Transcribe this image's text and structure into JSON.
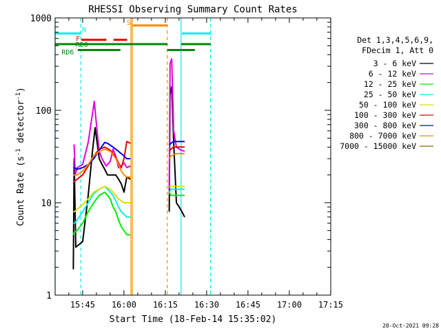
{
  "chart_data": {
    "type": "line",
    "title": "RHESSI Observing Summary Count Rates",
    "xlabel": "Start Time (18-Feb-14 15:35:02)",
    "ylabel_main": "Count Rate (s",
    "ylabel_sup1": "-1",
    "ylabel_mid": " detector",
    "ylabel_sup2": "-1",
    "ylabel_end": ")",
    "x_unit": "minutes after 15:35:02",
    "x_range": [
      0,
      100
    ],
    "y_scale": "log",
    "y_range": [
      1,
      1000
    ],
    "x_ticks": [
      {
        "value": 9.97,
        "label": "15:45"
      },
      {
        "value": 24.97,
        "label": "16:00"
      },
      {
        "value": 39.97,
        "label": "16:15"
      },
      {
        "value": 54.97,
        "label": "16:30"
      },
      {
        "value": 69.97,
        "label": "16:45"
      },
      {
        "value": 84.97,
        "label": "17:00"
      },
      {
        "value": 99.97,
        "label": "17:15"
      }
    ],
    "y_ticks": [
      {
        "value": 1,
        "label": "1"
      },
      {
        "value": 10,
        "label": "10"
      },
      {
        "value": 100,
        "label": "100"
      },
      {
        "value": 1000,
        "label": "1000"
      }
    ],
    "timestamp": "20-Oct-2021 09:28",
    "legend": {
      "header1": "Det 1,3,4,5,6,9,",
      "header2": "FDecim 1, Att 0",
      "entries": [
        {
          "label": "3 - 6 keV",
          "color": "#000000"
        },
        {
          "label": "6 - 12 keV",
          "color": "#dd00dd"
        },
        {
          "label": "12 - 25 keV",
          "color": "#00ee00"
        },
        {
          "label": "25 - 50 keV",
          "color": "#00eeee"
        },
        {
          "label": "50 - 100 keV",
          "color": "#dddd00"
        },
        {
          "label": "100 - 300 keV",
          "color": "#ee0000"
        },
        {
          "label": "300 - 800 keV",
          "color": "#0000ee"
        },
        {
          "label": "800 - 7000 keV",
          "color": "#ff8800"
        },
        {
          "label": "7000 - 15000 keV",
          "color": "#886600"
        }
      ]
    },
    "vlines": [
      {
        "x": 0.0,
        "color": "#00eeee",
        "dashed": false
      },
      {
        "x": 9.3,
        "color": "#00eeee",
        "dashed": true
      },
      {
        "x": 27.5,
        "color": "#ff8800",
        "dashed": false
      },
      {
        "x": 28.0,
        "color": "#ff8800",
        "dashed": false
      },
      {
        "x": 40.7,
        "color": "#ff8800",
        "dashed": true
      },
      {
        "x": 45.7,
        "color": "#00eeee",
        "dashed": false
      },
      {
        "x": 56.4,
        "color": "#00eeee",
        "dashed": true
      }
    ],
    "flag_bars": [
      {
        "name": "N",
        "color": "#00eeee",
        "y": 680,
        "segments": [
          [
            0,
            9.3
          ],
          [
            46,
            56.4
          ]
        ]
      },
      {
        "name": "S",
        "color": "#ff8800",
        "y": 830,
        "segments": [
          [
            28,
            40.7
          ]
        ]
      },
      {
        "name": "F",
        "color": "#ee0000",
        "y": 580,
        "segments": [
          [
            9.5,
            18.6
          ],
          [
            21.2,
            26.1
          ]
        ]
      },
      {
        "name": "RD0",
        "color": "#008800",
        "y": 520,
        "segments": [
          [
            0,
            40.7
          ],
          [
            45.7,
            56.4
          ]
        ]
      },
      {
        "name": "RD6",
        "color": "#008800",
        "y": 450,
        "segments": [
          [
            8.2,
            23.7
          ],
          [
            40.7,
            50.7
          ]
        ]
      }
    ],
    "flag_labels": [
      {
        "text": "N",
        "x": 10.5,
        "y": 760,
        "color": "#00eeee"
      },
      {
        "text": "S",
        "x": 26.7,
        "y": 900,
        "color": "#ff8800"
      },
      {
        "text": "F",
        "x": 8.3,
        "y": 600,
        "color": "#ee0000"
      },
      {
        "text": "RD0",
        "x": 9.7,
        "y": 520,
        "color": "#008800"
      },
      {
        "text": "RD6",
        "x": 4.6,
        "y": 430,
        "color": "#008800"
      }
    ],
    "series": [
      {
        "name": "3 - 6 keV",
        "color": "#000000",
        "segments": [
          {
            "x": [
              6.6,
              6.9,
              7.5,
              8.5,
              10,
              12,
              13.5,
              14.5,
              16,
              17,
              18,
              19,
              20,
              21,
              22,
              23,
              24,
              25,
              26,
              27.3
            ],
            "y": [
              1.9,
              30,
              3.3,
              3.5,
              3.8,
              12,
              35,
              65,
              30,
              26,
              23,
              20,
              20,
              20,
              20,
              18,
              16,
              13,
              19,
              18
            ]
          },
          {
            "x": [
              41.4,
              41.7,
              42.3,
              43,
              44,
              45,
              46,
              47
            ],
            "y": [
              8,
              150,
              180,
              46,
              10,
              9,
              8,
              7
            ]
          }
        ]
      },
      {
        "name": "6 - 12 keV",
        "color": "#dd00dd",
        "segments": [
          {
            "x": [
              6.6,
              6.9,
              7.3,
              8,
              10,
              12,
              13.5,
              14.2,
              15,
              16,
              17,
              18.5,
              20,
              21,
              22,
              23,
              24,
              25,
              26,
              27.3
            ],
            "y": [
              42,
              42,
              20,
              24,
              26,
              45,
              90,
              125,
              70,
              36,
              30,
              25,
              28,
              38,
              32,
              24,
              25,
              27,
              24,
              25
            ]
          },
          {
            "x": [
              41.4,
              41.7,
              42.3,
              43,
              44,
              45,
              46,
              47
            ],
            "y": [
              14,
              320,
              360,
              60,
              40,
              38,
              37,
              36
            ]
          }
        ]
      },
      {
        "name": "12 - 25 keV",
        "color": "#00ee00",
        "segments": [
          {
            "x": [
              6.6,
              7,
              8,
              10,
              12,
              14,
              16,
              18,
              19,
              20,
              21,
              22,
              23,
              24,
              25,
              26,
              27.3
            ],
            "y": [
              4.5,
              4.8,
              5,
              6,
              8,
              10,
              12,
              13,
              12,
              11,
              9,
              8,
              6.5,
              5.5,
              5,
              4.5,
              4.5
            ]
          },
          {
            "x": [
              41.4,
              42,
              43,
              44,
              45,
              46,
              47
            ],
            "y": [
              13,
              12,
              12,
              12,
              12,
              12,
              12
            ]
          }
        ]
      },
      {
        "name": "25 - 50 keV",
        "color": "#00eeee",
        "segments": [
          {
            "x": [
              6.6,
              7,
              8,
              10,
              12,
              14,
              16,
              18,
              19,
              20,
              21,
              22,
              23,
              24,
              25,
              26,
              27.3
            ],
            "y": [
              6,
              6,
              6.5,
              8,
              10,
              12.5,
              14,
              15,
              14,
              13,
              12,
              10.5,
              9,
              8,
              7.5,
              7,
              7
            ]
          },
          {
            "x": [
              41.4,
              42,
              43,
              44,
              45,
              46,
              47
            ],
            "y": [
              13,
              14,
              14,
              14,
              14,
              14,
              14
            ]
          }
        ]
      },
      {
        "name": "50 - 100 keV",
        "color": "#dddd00",
        "segments": [
          {
            "x": [
              6.6,
              7,
              8,
              10,
              12,
              14,
              16,
              18,
              19,
              20,
              21,
              22,
              23,
              24,
              25,
              26,
              27.3
            ],
            "y": [
              8,
              8,
              8.5,
              9.5,
              11,
              13,
              14,
              15,
              14.5,
              14,
              13,
              12,
              11,
              10.5,
              10,
              10,
              10
            ]
          },
          {
            "x": [
              41.4,
              42,
              43,
              44,
              45,
              46,
              47
            ],
            "y": [
              15,
              15,
              15,
              15,
              15,
              15,
              15
            ]
          }
        ]
      },
      {
        "name": "100 - 300 keV",
        "color": "#ee0000",
        "segments": [
          {
            "x": [
              6.6,
              7,
              8,
              10,
              12,
              14,
              16,
              18,
              20,
              21,
              22,
              23,
              24,
              25,
              26,
              27.3
            ],
            "y": [
              17,
              17,
              18,
              20,
              25,
              32,
              38,
              40,
              37,
              34,
              31,
              27,
              24,
              30,
              46,
              44
            ]
          },
          {
            "x": [
              41.4,
              42,
              43,
              44,
              45,
              46,
              47
            ],
            "y": [
              36,
              38,
              40,
              40,
              40,
              40,
              40
            ]
          }
        ]
      },
      {
        "name": "300 - 800 keV",
        "color": "#0000ee",
        "segments": [
          {
            "x": [
              6.6,
              7,
              8,
              10,
              12,
              14,
              16,
              18,
              19,
              20,
              21,
              22,
              23,
              24,
              25,
              26,
              27.3
            ],
            "y": [
              24,
              24,
              23,
              24,
              26,
              30,
              37,
              45,
              44,
              42,
              40,
              38,
              36,
              34,
              32,
              30,
              30
            ]
          },
          {
            "x": [
              41.4,
              42,
              43,
              44,
              45,
              46,
              47
            ],
            "y": [
              42,
              44,
              46,
              46,
              46,
              46,
              46
            ]
          }
        ]
      },
      {
        "name": "800 - 7000 keV",
        "color": "#ff8800",
        "segments": [
          {
            "x": [
              6.6,
              7,
              8,
              10,
              12,
              14,
              16,
              18,
              20,
              21,
              22,
              23,
              24,
              25,
              26,
              27.3
            ],
            "y": [
              20,
              20,
              20,
              22,
              26,
              32,
              36,
              38,
              36,
              33,
              30,
              26,
              22,
              20,
              19,
              19
            ]
          },
          {
            "x": [
              41.4,
              42,
              43,
              44,
              45,
              46,
              47
            ],
            "y": [
              30,
              32,
              33,
              34,
              34,
              34,
              34
            ]
          }
        ]
      },
      {
        "name": "7000 - 15000 keV",
        "color": "#886600",
        "segments": []
      }
    ]
  }
}
